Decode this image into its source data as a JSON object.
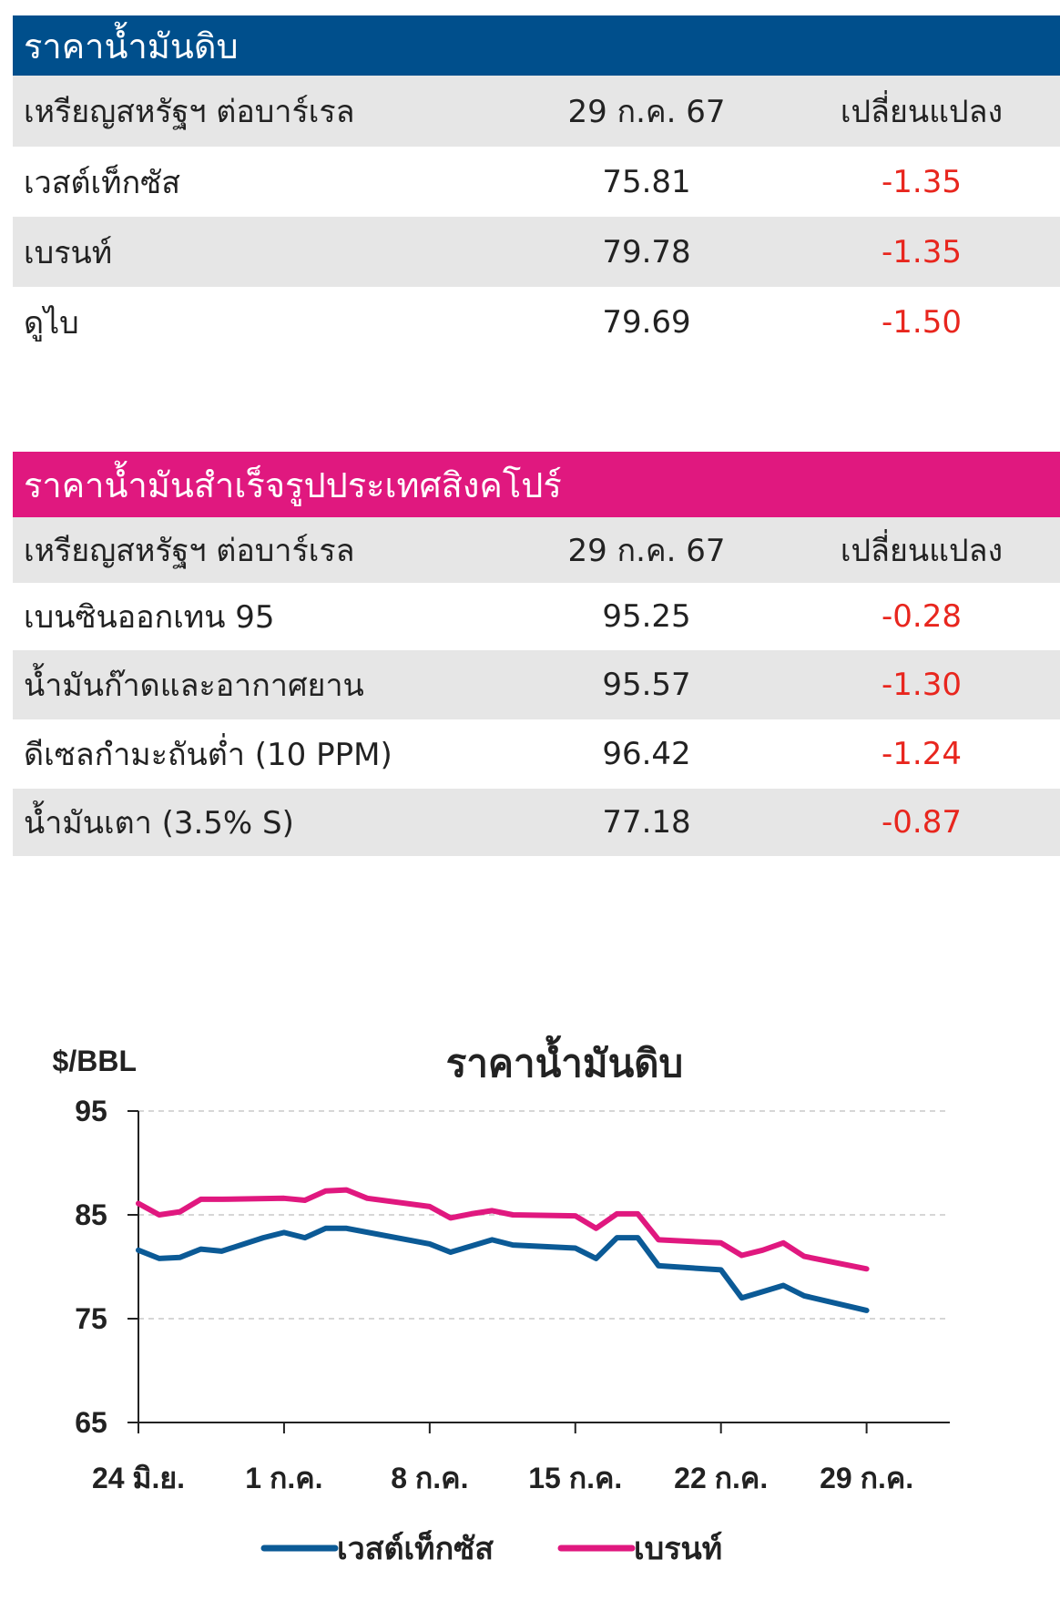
{
  "crude_table": {
    "title": "ราคาน้ำมันดิบ",
    "header": {
      "unit": "เหรียญสหรัฐฯ ต่อบาร์เรล",
      "date": "29 ก.ค. 67",
      "change": "เปลี่ยนแปลง"
    },
    "rows": [
      {
        "name": "เวสต์เท็กซัส",
        "price": "75.81",
        "change": "-1.35"
      },
      {
        "name": "เบรนท์",
        "price": "79.78",
        "change": "-1.35"
      },
      {
        "name": "ดูไบ",
        "price": "79.69",
        "change": "-1.50"
      }
    ],
    "color": "#004f8c"
  },
  "sg_table": {
    "title": "ราคาน้ำมันสำเร็จรูปประเทศสิงคโปร์",
    "header": {
      "unit": "เหรียญสหรัฐฯ ต่อบาร์เรล",
      "date": "29 ก.ค. 67",
      "change": "เปลี่ยนแปลง"
    },
    "rows": [
      {
        "name": "เบนซินออกเทน 95",
        "price": "95.25",
        "change": "-0.28"
      },
      {
        "name": "น้ำมันก๊าดและอากาศยาน",
        "price": "95.57",
        "change": "-1.30"
      },
      {
        "name": "ดีเซลกำมะถันต่ำ (10 PPM)",
        "price": "96.42",
        "change": "-1.24"
      },
      {
        "name": "น้ำมันเตา (3.5% S)",
        "price": "77.18",
        "change": "-0.87"
      }
    ],
    "color": "#e0187f"
  },
  "chart_data": {
    "type": "line",
    "title": "ราคาน้ำมันดิบ",
    "ylabel": "$/BBL",
    "xlabel": "",
    "ylim": [
      65,
      95
    ],
    "yticks": [
      95,
      85,
      75,
      65
    ],
    "grid": true,
    "legend_position": "bottom",
    "x_ticks": [
      "24 มิ.ย.",
      "1 ก.ค.",
      "8 ก.ค.",
      "15 ก.ค.",
      "22 ก.ค.",
      "29 ก.ค."
    ],
    "x_tick_days": [
      0,
      7,
      14,
      21,
      28,
      35
    ],
    "x_range_days": [
      0,
      39
    ],
    "series": [
      {
        "name": "เวสต์เท็กซัส",
        "color": "#0b5a96",
        "days": [
          0,
          1,
          2,
          3,
          4,
          6,
          7,
          8,
          9,
          10,
          14,
          15,
          16,
          17,
          18,
          21,
          22,
          23,
          24,
          25,
          28,
          29,
          30,
          31,
          32,
          35
        ],
        "values": [
          81.6,
          80.8,
          80.9,
          81.7,
          81.5,
          82.8,
          83.3,
          82.8,
          83.7,
          83.7,
          82.2,
          81.4,
          82.0,
          82.6,
          82.1,
          81.8,
          80.8,
          82.8,
          82.8,
          80.1,
          79.7,
          77.0,
          77.6,
          78.2,
          77.2,
          75.8
        ]
      },
      {
        "name": "เบรนท์",
        "color": "#e0187f",
        "days": [
          0,
          1,
          2,
          3,
          4,
          7,
          8,
          9,
          10,
          11,
          14,
          15,
          16,
          17,
          18,
          21,
          22,
          23,
          24,
          25,
          28,
          29,
          30,
          31,
          32,
          35
        ],
        "values": [
          86.1,
          85.0,
          85.3,
          86.5,
          86.5,
          86.6,
          86.4,
          87.3,
          87.4,
          86.6,
          85.8,
          84.7,
          85.1,
          85.4,
          85.0,
          84.9,
          83.7,
          85.1,
          85.1,
          82.6,
          82.3,
          81.1,
          81.6,
          82.3,
          81.0,
          79.8
        ]
      }
    ]
  }
}
